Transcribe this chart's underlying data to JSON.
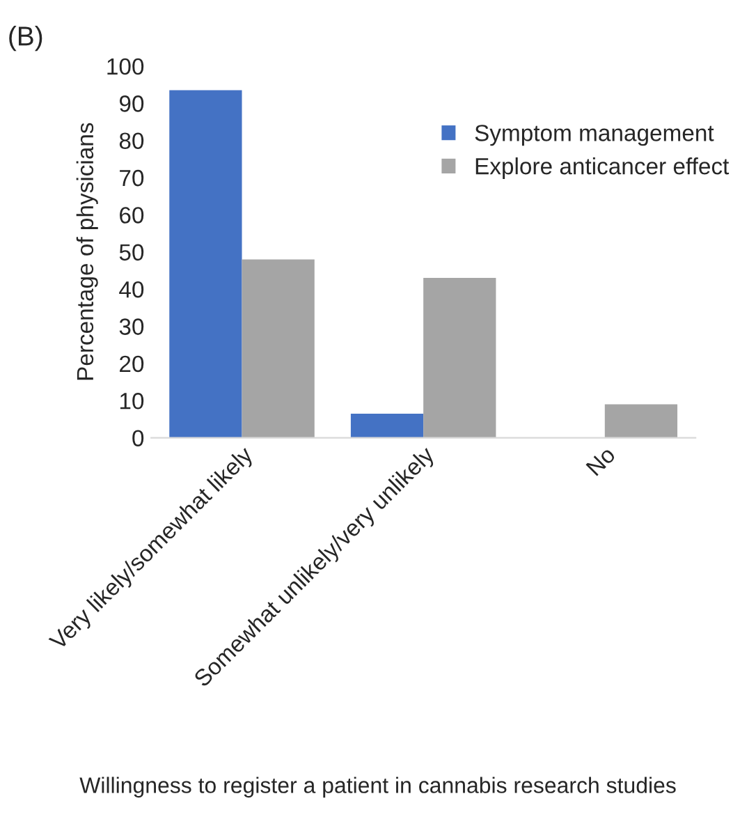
{
  "chart_data": {
    "type": "bar",
    "ylabel": "Percentage of physicians",
    "xlabel": "Willingness to register a patient in cannabis research studies",
    "annotations": [
      "(B)"
    ],
    "categories": [
      "Very likely/somewhat likely",
      "Somewhat unlikely/very unlikely",
      "No"
    ],
    "series": [
      {
        "name": "Symptom management",
        "color": "#4472c4",
        "values": [
          93.5,
          6.5,
          null
        ]
      },
      {
        "name": "Explore anticancer effect",
        "color": "#a5a5a5",
        "values": [
          48,
          43,
          9
        ]
      }
    ],
    "ylim": [
      0,
      100
    ],
    "yticks": [
      0,
      10,
      20,
      30,
      40,
      50,
      60,
      70,
      80,
      90,
      100
    ],
    "grid": false,
    "legend": "top right"
  }
}
